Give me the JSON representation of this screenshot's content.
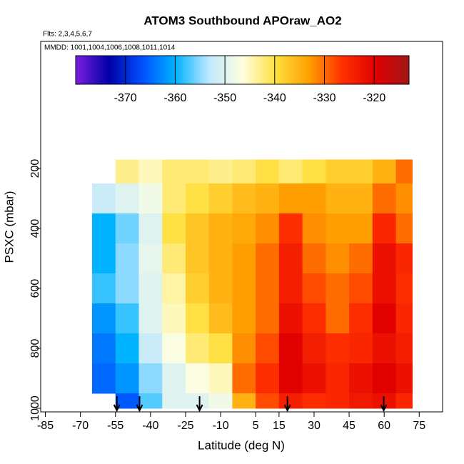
{
  "chart_data": {
    "type": "heatmap",
    "title": "ATOM3 Southbound APOraw_AO2",
    "subtitle": "Flts: 2,3,4,5,6,7",
    "annotation": "MMDD: 1001,1004,1006,1008,1011,1014",
    "x_label": "Latitude (deg N)",
    "y_label": "PSXC (mbar)",
    "xlim": [
      -87,
      85
    ],
    "xticks": [
      -85,
      -70,
      -55,
      -40,
      -25,
      -10,
      5,
      15,
      30,
      45,
      60,
      75
    ],
    "ylim": [
      1012,
      -224
    ],
    "yticks": [
      200,
      400,
      600,
      800,
      1000
    ],
    "lat_edges": [
      -65,
      -55,
      -45,
      -35,
      -25,
      -15,
      -5,
      5,
      15,
      25,
      35,
      45,
      55,
      65,
      72
    ],
    "pressure_edges": [
      170,
      250,
      350,
      450,
      550,
      650,
      750,
      850,
      950,
      1000
    ],
    "values": [
      [
        null,
        -343,
        -345,
        -342,
        -342,
        -343,
        -342,
        -340,
        -342,
        -340,
        -338,
        -338,
        -335,
        -330
      ],
      [
        -352,
        -350,
        -348,
        -342,
        -340,
        -338,
        -336,
        -335,
        -333,
        -333,
        -335,
        -335,
        -330,
        -332
      ],
      [
        -360,
        -356,
        -350,
        -340,
        -337,
        -335,
        -334,
        -332,
        -326,
        -332,
        -333,
        -333,
        -325,
        -330
      ],
      [
        -360,
        -355,
        -349,
        -342,
        -337,
        -335,
        -333,
        -330,
        -324,
        -330,
        -332,
        -330,
        -322,
        -325
      ],
      [
        -358,
        -355,
        -350,
        -344,
        -338,
        -335,
        -333,
        -330,
        -324,
        -328,
        -330,
        -328,
        -322,
        -326
      ],
      [
        -362,
        -358,
        -350,
        -345,
        -340,
        -336,
        -333,
        -330,
        -322,
        -326,
        -330,
        -326,
        -320,
        -325
      ],
      [
        -364,
        -360,
        -352,
        -347,
        -342,
        -340,
        -332,
        -328,
        -320,
        -324,
        -326,
        -325,
        -322,
        -324
      ],
      [
        -365,
        -362,
        -355,
        -350,
        -347,
        -345,
        -330,
        -326,
        -320,
        -322,
        -325,
        -322,
        -320,
        -322
      ],
      [
        null,
        -366,
        -357,
        -350,
        -350,
        -348,
        -335,
        -328,
        -324,
        -326,
        -325,
        -323,
        -322,
        -325
      ]
    ],
    "clim": [
      -380,
      -313
    ],
    "cticks": [
      -370,
      -360,
      -350,
      -340,
      -330,
      -320
    ],
    "colormap": [
      "#7b1fe0",
      "#0000a8",
      "#0050ff",
      "#00b4ff",
      "#bfe8ff",
      "#ffffe0",
      "#ffe040",
      "#ffa000",
      "#ff3000",
      "#e00000",
      "#a01818"
    ],
    "arrows": [
      -54.4,
      -44.7,
      -19,
      18.6,
      59.8
    ]
  }
}
